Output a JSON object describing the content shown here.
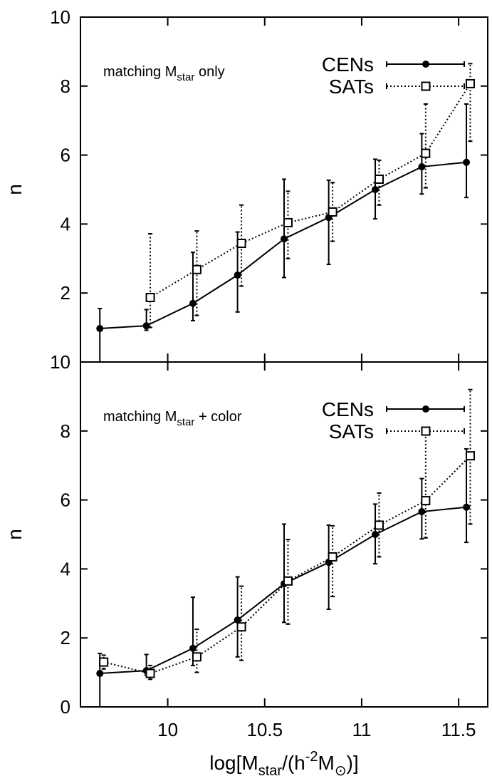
{
  "chart_data": [
    {
      "type": "line",
      "y_label": "n",
      "annotation": {
        "text": "matching M",
        "sub": "star",
        "rest": " only"
      },
      "xlim": [
        9.55,
        11.65
      ],
      "xticks": [
        10,
        10.5,
        11,
        11.5
      ],
      "ylim": [
        0,
        10
      ],
      "yticks": [
        2,
        4,
        6,
        8,
        10
      ],
      "series": [
        {
          "name": "CENs",
          "color": "#000000",
          "style": "solid",
          "marker": "circle",
          "x": [
            9.65,
            9.89,
            10.13,
            10.36,
            10.6,
            10.83,
            11.07,
            11.31,
            11.54
          ],
          "values": [
            0.97,
            1.05,
            1.7,
            2.52,
            3.57,
            4.19,
            5.0,
            5.66,
            5.79
          ],
          "err_low": [
            0,
            0.92,
            1.2,
            1.45,
            2.45,
            2.83,
            4.15,
            4.87,
            4.77
          ],
          "err_high": [
            1.55,
            1.52,
            3.18,
            3.77,
            5.3,
            5.27,
            5.88,
            6.62,
            7.48
          ]
        },
        {
          "name": "SATs",
          "color": "#000000",
          "style": "dotted",
          "marker": "square",
          "x": [
            9.91,
            10.15,
            10.38,
            10.62,
            10.85,
            11.09,
            11.33,
            11.56
          ],
          "values": [
            1.87,
            2.68,
            3.44,
            4.04,
            4.35,
            5.3,
            6.05,
            8.07
          ],
          "err_low": [
            1.0,
            1.35,
            2.2,
            3.0,
            3.5,
            4.55,
            5.05,
            6.4
          ],
          "err_high": [
            3.72,
            3.8,
            4.55,
            4.95,
            5.2,
            5.85,
            7.48,
            8.65
          ]
        }
      ]
    },
    {
      "type": "line",
      "y_label": "n",
      "annotation": {
        "text": "matching M",
        "sub": "star",
        "rest": " + color"
      },
      "x_label": [
        "log[M",
        "star",
        "/(h",
        "-2",
        "M",
        "⊙",
        ")]"
      ],
      "xlim": [
        9.55,
        11.65
      ],
      "xticks": [
        10,
        10.5,
        11,
        11.5
      ],
      "ylim": [
        0,
        10
      ],
      "yticks": [
        0,
        2,
        4,
        6,
        8,
        10
      ],
      "series": [
        {
          "name": "CENs",
          "color": "#000000",
          "style": "solid",
          "marker": "circle",
          "x": [
            9.65,
            9.89,
            10.13,
            10.36,
            10.6,
            10.83,
            11.07,
            11.31,
            11.54
          ],
          "values": [
            0.97,
            1.05,
            1.7,
            2.52,
            3.57,
            4.19,
            5.0,
            5.66,
            5.79
          ],
          "err_low": [
            0,
            0.92,
            1.2,
            1.45,
            2.45,
            2.83,
            4.15,
            4.87,
            4.77
          ],
          "err_high": [
            1.55,
            1.52,
            3.18,
            3.77,
            5.3,
            5.27,
            5.88,
            6.62,
            7.48
          ]
        },
        {
          "name": "SATs",
          "color": "#000000",
          "style": "dotted",
          "marker": "square",
          "x": [
            9.67,
            9.91,
            10.15,
            10.38,
            10.62,
            10.85,
            11.09,
            11.33,
            11.56
          ],
          "values": [
            1.3,
            0.97,
            1.45,
            2.32,
            3.65,
            4.35,
            5.27,
            5.98,
            7.28
          ],
          "err_low": [
            1.1,
            0.8,
            1.0,
            1.35,
            2.4,
            3.2,
            4.35,
            4.9,
            5.3
          ],
          "err_high": [
            1.5,
            1.2,
            2.25,
            3.5,
            4.85,
            5.25,
            6.2,
            8.0,
            9.2
          ]
        }
      ]
    }
  ]
}
